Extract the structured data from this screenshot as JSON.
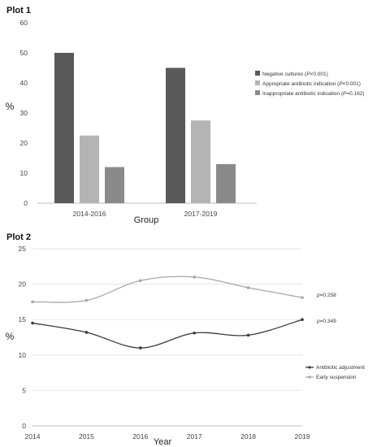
{
  "chart_data": [
    {
      "type": "bar",
      "title": "Plot 1",
      "xlabel": "Group",
      "ylabel": "%",
      "ylim": [
        0,
        60
      ],
      "yticks": [
        0,
        10,
        20,
        30,
        40,
        50,
        60
      ],
      "categories": [
        "2014-2016",
        "2017-2019"
      ],
      "series": [
        {
          "name": "Negative cultures (P<0.001)",
          "name_prefix": "Negative cultures (",
          "name_italic": "P",
          "name_suffix": "<0.001)",
          "color": "#595959",
          "values": [
            50,
            45
          ]
        },
        {
          "name": "Appropriate antibiotic indication (P<0.001)",
          "name_prefix": "Appropriate antibiotic indication (",
          "name_italic": "P",
          "name_suffix": "<0.001)",
          "color": "#b4b4b4",
          "values": [
            22.5,
            27.5
          ]
        },
        {
          "name": "Inappropriate antibiotic indication (P=0.162)",
          "name_prefix": "Inappropriate antibiotic indication (",
          "name_italic": "P",
          "name_suffix": "=0.162)",
          "color": "#8a8a8a",
          "values": [
            12,
            13
          ]
        }
      ],
      "grid": false,
      "legend": "right"
    },
    {
      "type": "line",
      "title": "Plot 2",
      "xlabel": "Year",
      "ylabel": "%",
      "ylim": [
        0,
        25
      ],
      "yticks": [
        0,
        5,
        10,
        15,
        20,
        25
      ],
      "x": [
        2014,
        2015,
        2016,
        2017,
        2018,
        2019
      ],
      "series": [
        {
          "name": "Antibiotic adjustment",
          "color": "#3a3a3a",
          "values": [
            14.5,
            13.2,
            11.0,
            13.1,
            12.8,
            15.0
          ],
          "annotation_prefix": "",
          "annotation_italic": "p",
          "annotation_suffix": "=0.349"
        },
        {
          "name": "Early suspension",
          "color": "#a8a8a8",
          "values": [
            17.5,
            17.7,
            20.5,
            21.0,
            19.5,
            18.1
          ],
          "annotation_prefix": "",
          "annotation_italic": "p",
          "annotation_suffix": "=0.258"
        }
      ],
      "grid": true,
      "legend": "right"
    }
  ]
}
